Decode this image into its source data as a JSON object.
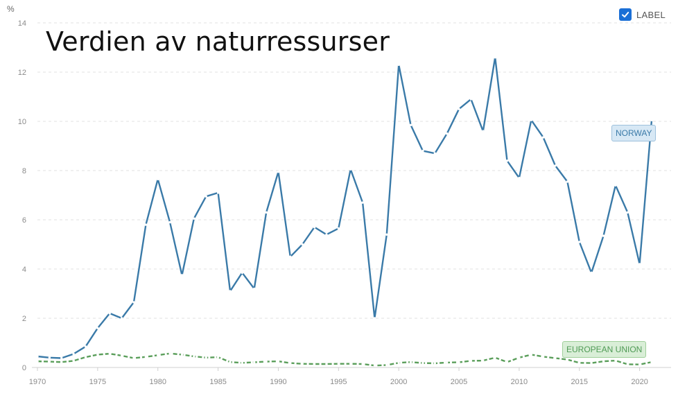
{
  "title": "Verdien av naturressurser",
  "unit": "%",
  "toggle": {
    "label": "LABEL",
    "checked": true
  },
  "chart_data": {
    "type": "line",
    "title": "Verdien av naturressurser",
    "ylabel": "%",
    "xlim": [
      1970,
      2021
    ],
    "ylim": [
      0,
      14
    ],
    "yticks": [
      0,
      2,
      4,
      6,
      8,
      10,
      12,
      14
    ],
    "xticks": [
      1970,
      1975,
      1980,
      1985,
      1990,
      1995,
      2000,
      2005,
      2010,
      2015,
      2020
    ],
    "grid": true,
    "x": [
      1970,
      1971,
      1972,
      1973,
      1974,
      1975,
      1976,
      1977,
      1978,
      1979,
      1980,
      1981,
      1982,
      1983,
      1984,
      1985,
      1986,
      1987,
      1988,
      1989,
      1990,
      1991,
      1992,
      1993,
      1994,
      1995,
      1996,
      1997,
      1998,
      1999,
      2000,
      2001,
      2002,
      2003,
      2004,
      2005,
      2006,
      2007,
      2008,
      2009,
      2010,
      2011,
      2012,
      2013,
      2014,
      2015,
      2016,
      2017,
      2018,
      2019,
      2020,
      2021
    ],
    "series": [
      {
        "name": "NORWAY",
        "color": "#3a7aa8",
        "style": "solid",
        "values": [
          0.45,
          0.4,
          0.38,
          0.55,
          0.85,
          1.6,
          2.2,
          2.0,
          2.65,
          5.8,
          7.65,
          5.9,
          3.75,
          6.05,
          6.95,
          7.1,
          3.1,
          3.85,
          3.2,
          6.3,
          7.95,
          4.5,
          5.0,
          5.7,
          5.4,
          5.65,
          8.05,
          6.7,
          2.0,
          5.4,
          12.3,
          9.85,
          8.8,
          8.7,
          9.5,
          10.5,
          10.9,
          9.6,
          12.6,
          8.4,
          7.7,
          10.05,
          9.35,
          8.2,
          7.55,
          5.1,
          3.85,
          5.35,
          7.4,
          6.3,
          4.2,
          10.05
        ]
      },
      {
        "name": "EUROPEAN UNION",
        "color": "#5a9e5a",
        "style": "dashed",
        "values": [
          0.25,
          0.24,
          0.22,
          0.27,
          0.42,
          0.52,
          0.56,
          0.48,
          0.38,
          0.43,
          0.5,
          0.57,
          0.52,
          0.45,
          0.4,
          0.42,
          0.22,
          0.19,
          0.21,
          0.24,
          0.25,
          0.18,
          0.15,
          0.14,
          0.14,
          0.15,
          0.15,
          0.14,
          0.08,
          0.1,
          0.19,
          0.22,
          0.18,
          0.17,
          0.2,
          0.21,
          0.27,
          0.28,
          0.4,
          0.22,
          0.4,
          0.52,
          0.44,
          0.38,
          0.32,
          0.19,
          0.18,
          0.25,
          0.28,
          0.13,
          0.12,
          0.22
        ]
      }
    ]
  }
}
